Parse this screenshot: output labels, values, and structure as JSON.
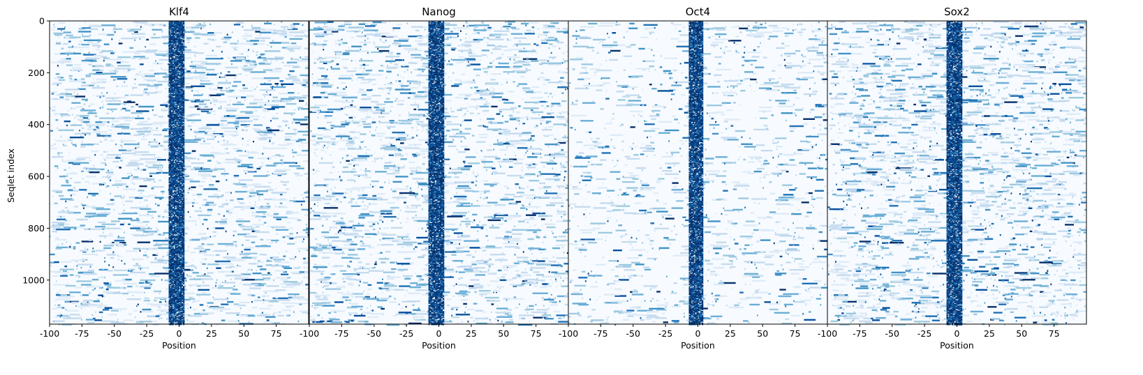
{
  "chart_data": {
    "type": "heatmap",
    "layout": "4 panels side by side, shared y axis",
    "x_tick_labels": [
      "-100",
      "-75",
      "-50",
      "-25",
      "0",
      "25",
      "50",
      "75"
    ],
    "x_ticks": [
      -100,
      -75,
      -50,
      -25,
      0,
      25,
      50,
      75
    ],
    "x_range": [
      -100,
      100
    ],
    "y_tick_labels": [
      "0",
      "200",
      "400",
      "600",
      "800",
      "1000"
    ],
    "y_ticks": [
      0,
      200,
      400,
      600,
      800,
      1000
    ],
    "y_range": [
      1170,
      0
    ],
    "xlabel": "Position",
    "ylabel": "Seqlet index",
    "colormap": "Blues",
    "colors": {
      "low": "#f7fbff",
      "mid": "#6baed6",
      "high": "#08306b",
      "accent": "#d62728"
    },
    "grid": false,
    "panels": [
      {
        "title": "Klf4",
        "motif_band": [
          -8,
          3
        ]
      },
      {
        "title": "Nanog",
        "motif_band": [
          -8,
          3
        ]
      },
      {
        "title": "Oct4",
        "motif_band": [
          -7,
          3
        ]
      },
      {
        "title": "Sox2",
        "motif_band": [
          -8,
          3
        ]
      }
    ]
  }
}
